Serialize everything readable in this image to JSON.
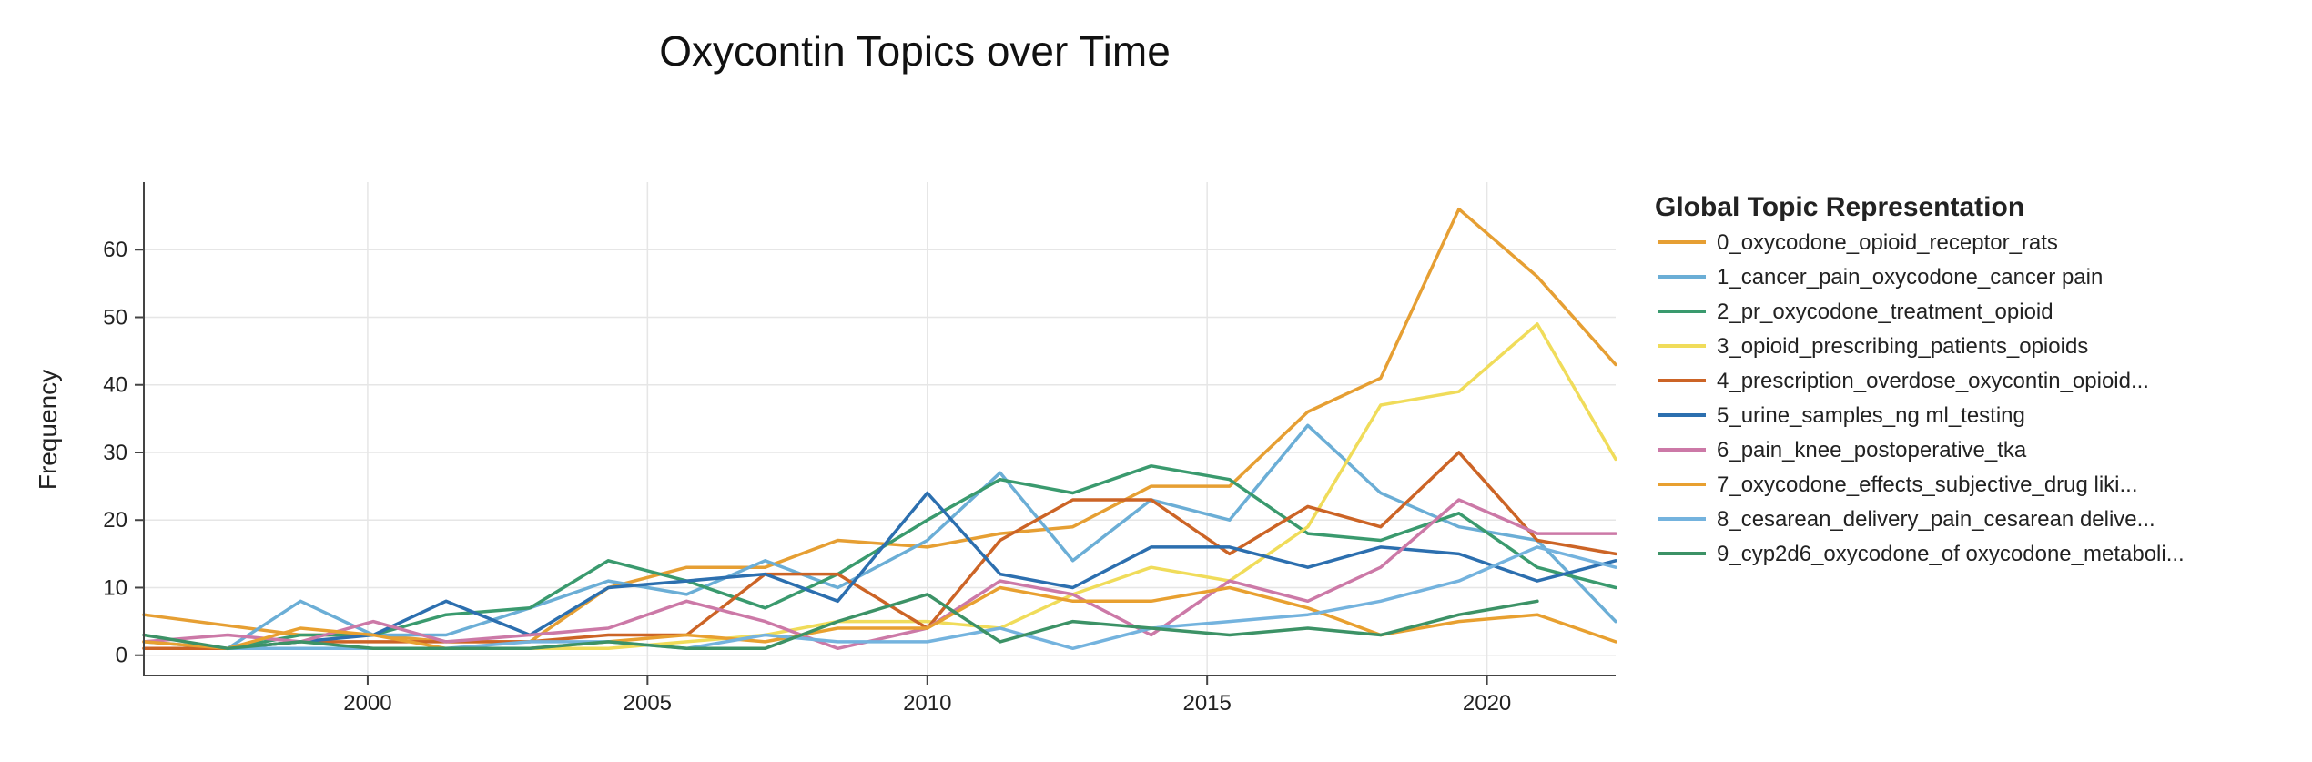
{
  "chart_data": {
    "type": "line",
    "title": "Oxycontin Topics over Time",
    "xlabel": "",
    "ylabel": "Frequency",
    "xlim": [
      1996,
      2022.3
    ],
    "ylim": [
      -3,
      70
    ],
    "x_ticks": [
      2000,
      2005,
      2010,
      2015,
      2020
    ],
    "y_ticks": [
      0,
      10,
      20,
      30,
      40,
      50,
      60
    ],
    "grid": true,
    "legend": {
      "title": "Global Topic Representation",
      "position": "right"
    },
    "series": [
      {
        "name": "0_oxycodone_opioid_receptor_rats",
        "color": "#E69F33",
        "x": [
          1996,
          1998.8,
          2000.1,
          2001.4,
          2002.9,
          2004.3,
          2005.7,
          2007.1,
          2008.4,
          2010,
          2011.3,
          2012.6,
          2014,
          2015.4,
          2016.8,
          2018.1,
          2019.5,
          2020.9,
          2022.3
        ],
        "y": [
          6,
          3,
          3,
          2,
          2,
          10,
          13,
          13,
          17,
          16,
          18,
          19,
          25,
          25,
          36,
          41,
          66,
          56,
          43
        ]
      },
      {
        "name": "1_cancer_pain_oxycodone_cancer pain",
        "color": "#6BAED6",
        "x": [
          1996,
          1997.5,
          1998.8,
          2000.1,
          2001.4,
          2002.9,
          2004.3,
          2005.7,
          2007.1,
          2008.4,
          2010,
          2011.3,
          2012.6,
          2014,
          2015.4,
          2016.8,
          2018.1,
          2019.5,
          2020.9,
          2022.3
        ],
        "y": [
          2,
          1,
          8,
          3,
          3,
          7,
          11,
          9,
          14,
          10,
          17,
          27,
          14,
          23,
          20,
          34,
          24,
          19,
          17,
          5
        ]
      },
      {
        "name": "2_pr_oxycodone_treatment_opioid",
        "color": "#3A9A6E",
        "x": [
          1997.5,
          1998.8,
          2000.1,
          2001.4,
          2002.9,
          2004.3,
          2005.7,
          2007.1,
          2008.4,
          2010,
          2011.3,
          2012.6,
          2014,
          2015.4,
          2016.8,
          2018.1,
          2019.5,
          2020.9,
          2022.3
        ],
        "y": [
          1,
          3,
          3,
          6,
          7,
          14,
          11,
          7,
          12,
          20,
          26,
          24,
          28,
          26,
          18,
          17,
          21,
          13,
          10
        ]
      },
      {
        "name": "3_opioid_prescribing_patients_opioids",
        "color": "#F0DC5A",
        "x": [
          1997.5,
          1998.8,
          2000.1,
          2001.4,
          2002.9,
          2004.3,
          2005.7,
          2007.1,
          2008.4,
          2010,
          2011.3,
          2012.6,
          2014,
          2015.4,
          2016.8,
          2018.1,
          2019.5,
          2020.9,
          2022.3
        ],
        "y": [
          1,
          1,
          1,
          1,
          1,
          1,
          2,
          3,
          5,
          5,
          4,
          9,
          13,
          11,
          19,
          37,
          39,
          49,
          29
        ]
      },
      {
        "name": "4_prescription_overdose_oxycontin_opioid...",
        "color": "#CC6426",
        "x": [
          1996,
          1997.5,
          1998.8,
          2000.1,
          2001.4,
          2002.9,
          2004.3,
          2005.7,
          2007.1,
          2008.4,
          2010,
          2011.3,
          2012.6,
          2014,
          2015.4,
          2016.8,
          2018.1,
          2019.5,
          2020.9,
          2022.3
        ],
        "y": [
          1,
          1,
          2,
          2,
          2,
          2,
          3,
          3,
          12,
          12,
          4,
          17,
          23,
          23,
          15,
          22,
          19,
          30,
          17,
          15
        ]
      },
      {
        "name": "5_urine_samples_ng ml_testing",
        "color": "#2C6FAF",
        "x": [
          1997.5,
          1998.8,
          2000.1,
          2001.4,
          2002.9,
          2004.3,
          2005.7,
          2007.1,
          2008.4,
          2010,
          2011.3,
          2012.6,
          2014,
          2015.4,
          2016.8,
          2018.1,
          2019.5,
          2020.9,
          2022.3
        ],
        "y": [
          1,
          2,
          3,
          8,
          3,
          10,
          11,
          12,
          8,
          24,
          12,
          10,
          16,
          16,
          13,
          16,
          15,
          11,
          14
        ]
      },
      {
        "name": "6_pain_knee_postoperative_tka",
        "color": "#CC79A7",
        "x": [
          1996,
          1997.5,
          1998.8,
          2000.1,
          2001.4,
          2002.9,
          2004.3,
          2005.7,
          2007.1,
          2008.4,
          2010,
          2011.3,
          2012.6,
          2014,
          2015.4,
          2016.8,
          2018.1,
          2019.5,
          2020.9,
          2022.3
        ],
        "y": [
          2,
          3,
          2,
          5,
          2,
          3,
          4,
          8,
          5,
          1,
          4,
          11,
          9,
          3,
          11,
          8,
          13,
          23,
          18,
          18
        ]
      },
      {
        "name": "7_oxycodone_effects_subjective_drug liki...",
        "color": "#E8A030",
        "x": [
          1996,
          1997.5,
          1998.8,
          2000.1,
          2001.4,
          2002.9,
          2004.3,
          2005.7,
          2007.1,
          2008.4,
          2010,
          2011.3,
          2012.6,
          2014,
          2015.4,
          2016.8,
          2018.1,
          2019.5,
          2020.9,
          2022.3
        ],
        "y": [
          2,
          1,
          4,
          3,
          1,
          1,
          2,
          3,
          2,
          4,
          4,
          10,
          8,
          8,
          10,
          7,
          3,
          5,
          6,
          2
        ]
      },
      {
        "name": "8_cesarean_delivery_pain_cesarean delive...",
        "color": "#74B3DE",
        "x": [
          1997.5,
          1998.8,
          2000.1,
          2001.4,
          2002.9,
          2004.3,
          2005.7,
          2007.1,
          2008.4,
          2010,
          2011.3,
          2012.6,
          2014,
          2015.4,
          2016.8,
          2018.1,
          2019.5,
          2020.9,
          2022.3
        ],
        "y": [
          1,
          1,
          1,
          1,
          2,
          2,
          1,
          3,
          2,
          2,
          4,
          1,
          4,
          5,
          6,
          8,
          11,
          16,
          13
        ]
      },
      {
        "name": "9_cyp2d6_oxycodone_of oxycodone_metaboli...",
        "color": "#3C9266",
        "x": [
          1996,
          1997.5,
          1998.8,
          2000.1,
          2001.4,
          2002.9,
          2004.3,
          2005.7,
          2007.1,
          2008.4,
          2010,
          2011.3,
          2012.6,
          2014,
          2015.4,
          2016.8,
          2018.1,
          2019.5,
          2020.9
        ],
        "y": [
          3,
          1,
          2,
          1,
          1,
          1,
          2,
          1,
          1,
          5,
          9,
          2,
          5,
          4,
          3,
          4,
          3,
          6,
          8
        ]
      }
    ]
  }
}
